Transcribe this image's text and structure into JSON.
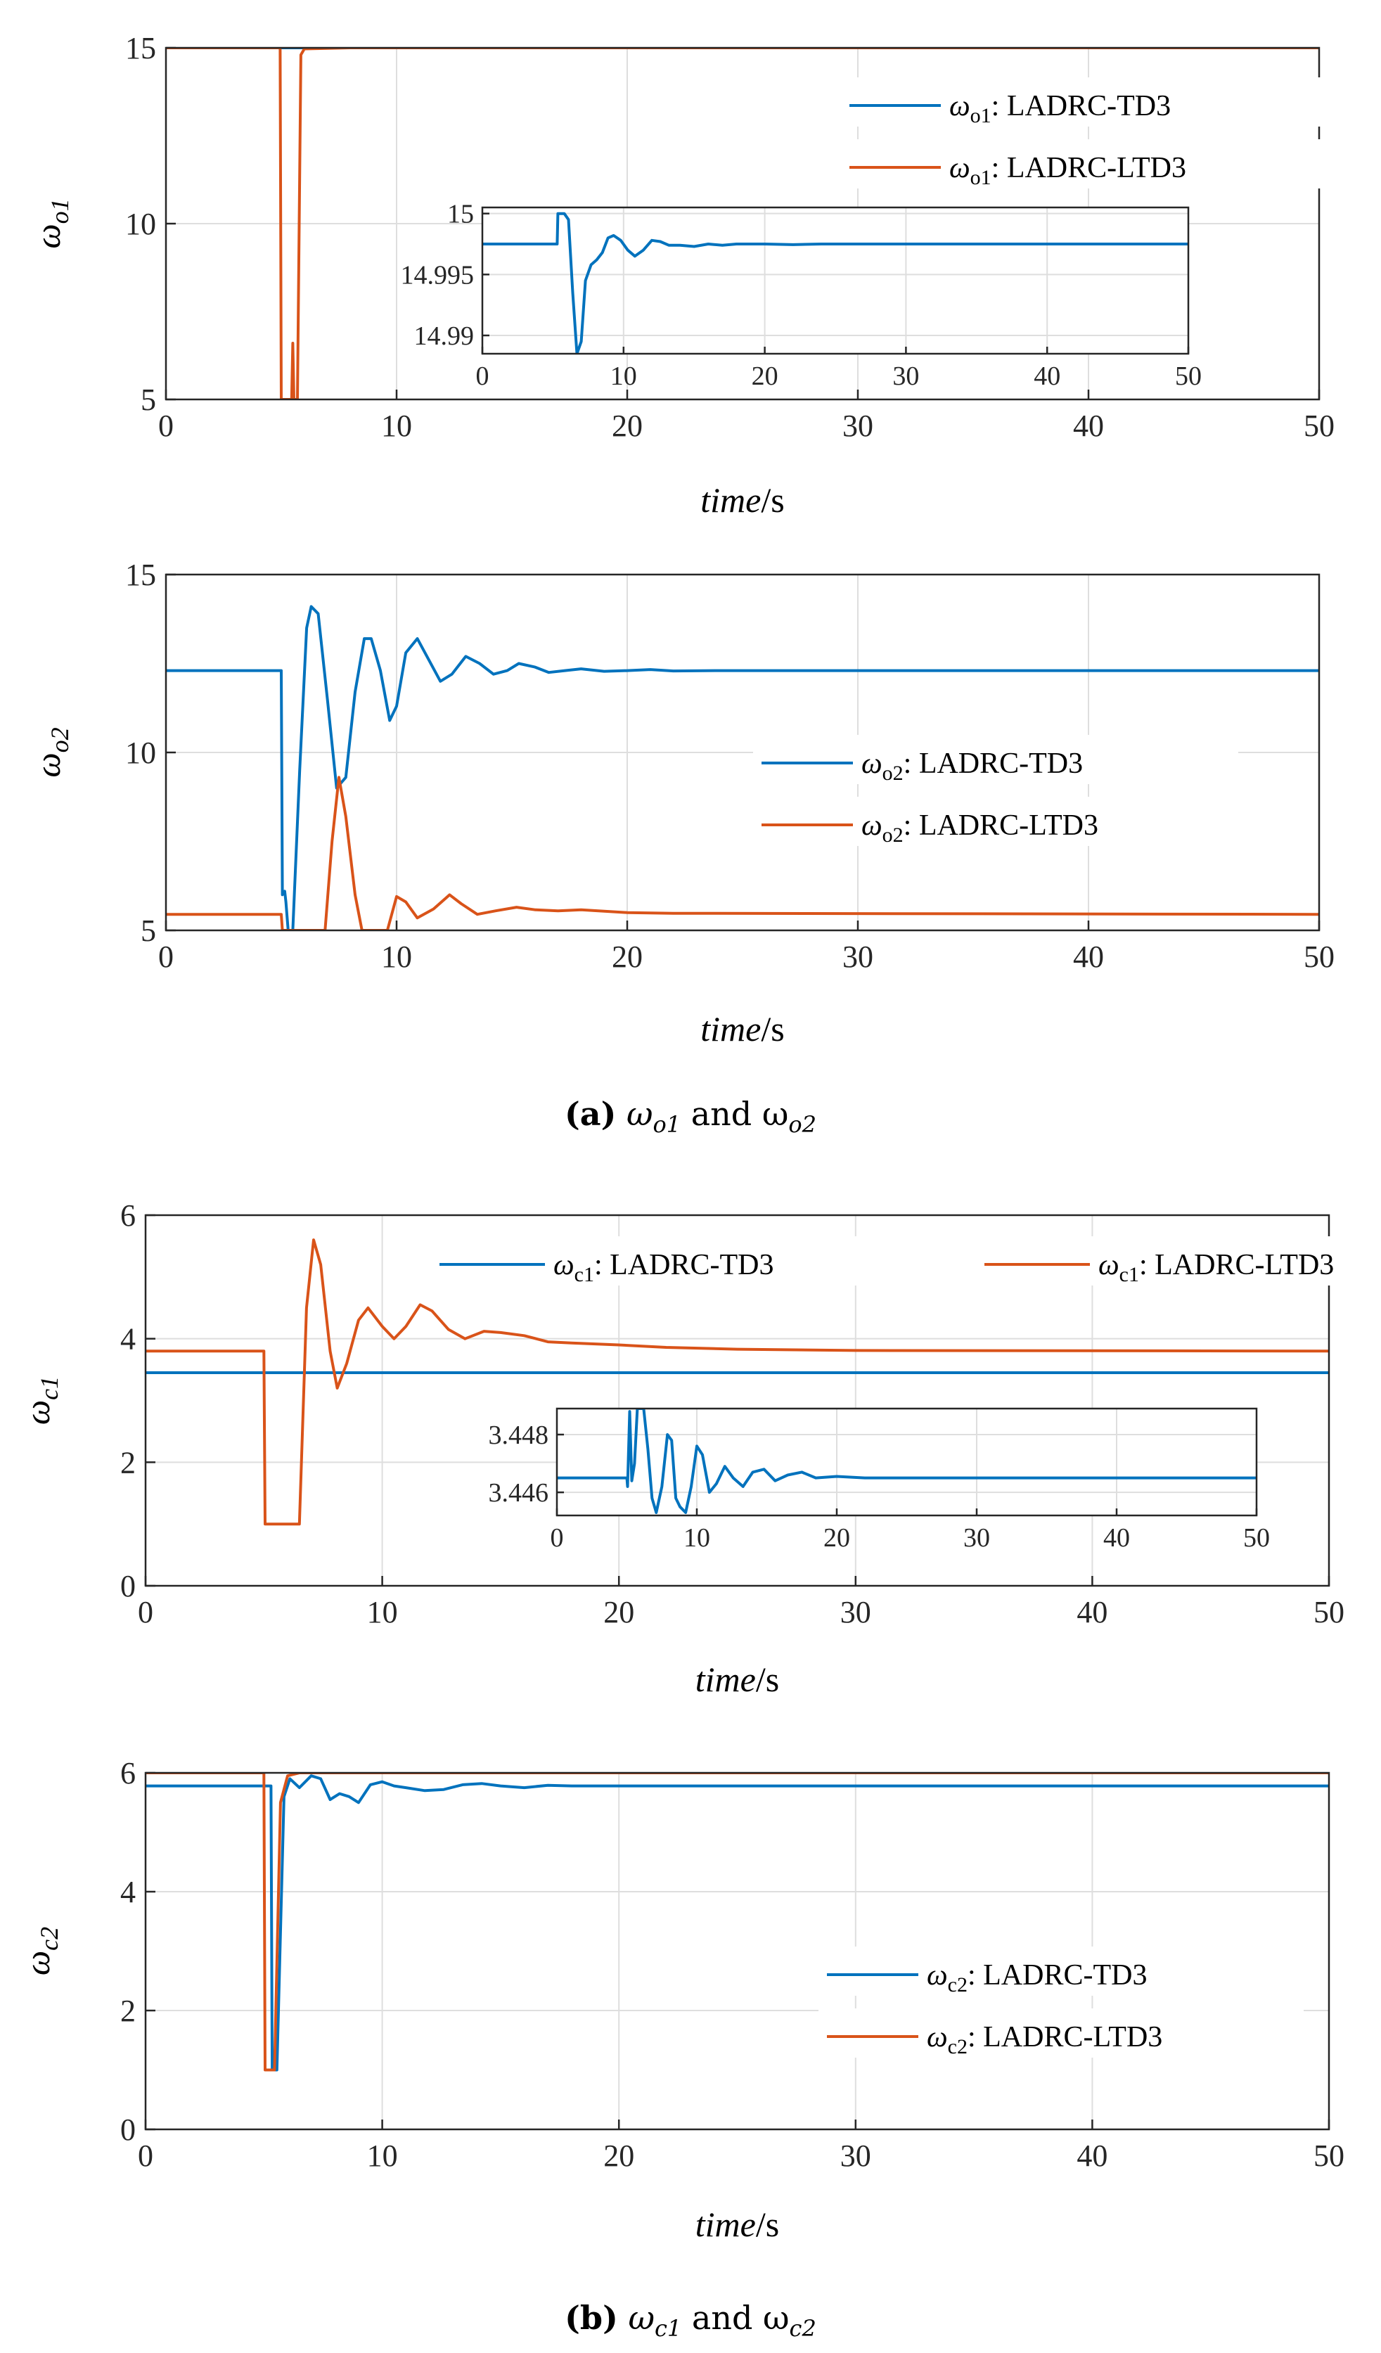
{
  "colors": {
    "ladrc_td3": "#0072BD",
    "ladrc_ltd3": "#D95319"
  },
  "captions": [
    {
      "label": "(a)",
      "text": " ω",
      "sub1": "o1",
      "mid": " and ω",
      "sub2": "o2"
    },
    {
      "label": "(b)",
      "text": " ω",
      "sub1": "c1",
      "mid": " and ω",
      "sub2": "c2"
    }
  ],
  "chart_data": [
    {
      "type": "line",
      "ylabel_base": "ω",
      "ylabel_sub": "o1",
      "xlabel_italic": "time",
      "xlabel_unit": "/s",
      "xlim": [
        0,
        50
      ],
      "ylim": [
        5,
        15
      ],
      "xticks": [
        0,
        10,
        20,
        30,
        40,
        50
      ],
      "yticks": [
        5,
        10,
        15
      ],
      "legend": "top-right",
      "series": [
        {
          "name": "ω",
          "sub": "o1",
          "suffix": ": LADRC-TD3",
          "color_key": "ladrc_td3",
          "points": [
            [
              0,
              15
            ],
            [
              50,
              15
            ]
          ]
        },
        {
          "name": "ω",
          "sub": "o1",
          "suffix": ": LADRC-LTD3",
          "color_key": "ladrc_ltd3",
          "points": [
            [
              0,
              15
            ],
            [
              4.95,
              15
            ],
            [
              5.0,
              5
            ],
            [
              5.45,
              5
            ],
            [
              5.5,
              6.6
            ],
            [
              5.55,
              5
            ],
            [
              5.7,
              5
            ],
            [
              5.85,
              14.8
            ],
            [
              6.0,
              14.97
            ],
            [
              8,
              15
            ],
            [
              50,
              15
            ]
          ]
        }
      ],
      "inset": {
        "xlim": [
          0,
          50
        ],
        "ylim": [
          14.9885,
          15.0005
        ],
        "xticks": [
          0,
          10,
          20,
          30,
          40,
          50
        ],
        "yticks": [
          14.99,
          14.995,
          15
        ],
        "ytick_labels": [
          "14.99",
          "14.995",
          "15"
        ],
        "series_key": "ladrc_td3",
        "points": [
          [
            0,
            14.9975
          ],
          [
            5.3,
            14.9975
          ],
          [
            5.35,
            15.0
          ],
          [
            5.8,
            15.0
          ],
          [
            6.1,
            14.9995
          ],
          [
            6.4,
            14.9935
          ],
          [
            6.7,
            14.9885
          ],
          [
            7.0,
            14.9895
          ],
          [
            7.3,
            14.9945
          ],
          [
            7.7,
            14.9958
          ],
          [
            8.1,
            14.9962
          ],
          [
            8.5,
            14.9968
          ],
          [
            8.9,
            14.998
          ],
          [
            9.3,
            14.9982
          ],
          [
            9.8,
            14.9978
          ],
          [
            10.3,
            14.997
          ],
          [
            10.8,
            14.9965
          ],
          [
            11.4,
            14.997
          ],
          [
            12.0,
            14.9978
          ],
          [
            12.6,
            14.9977
          ],
          [
            13.2,
            14.9974
          ],
          [
            14.0,
            14.9974
          ],
          [
            15.0,
            14.9973
          ],
          [
            16.0,
            14.9975
          ],
          [
            17.0,
            14.9974
          ],
          [
            18.0,
            14.9975
          ],
          [
            20.0,
            14.9975
          ],
          [
            22.0,
            14.99745
          ],
          [
            24.0,
            14.9975
          ],
          [
            50,
            14.9975
          ]
        ]
      }
    },
    {
      "type": "line",
      "ylabel_base": "ω",
      "ylabel_sub": "o2",
      "xlabel_italic": "time",
      "xlabel_unit": "/s",
      "xlim": [
        0,
        50
      ],
      "ylim": [
        5,
        15
      ],
      "xticks": [
        0,
        10,
        20,
        30,
        40,
        50
      ],
      "yticks": [
        5,
        10,
        15
      ],
      "legend": "center-right",
      "series": [
        {
          "name": "ω",
          "sub": "o2",
          "suffix": ": LADRC-TD3",
          "color_key": "ladrc_td3",
          "points": [
            [
              0,
              12.3
            ],
            [
              5.0,
              12.3
            ],
            [
              5.05,
              6.0
            ],
            [
              5.15,
              6.1
            ],
            [
              5.2,
              5.8
            ],
            [
              5.3,
              5.0
            ],
            [
              5.5,
              5.0
            ],
            [
              5.8,
              9.5
            ],
            [
              6.1,
              13.5
            ],
            [
              6.3,
              14.1
            ],
            [
              6.6,
              13.9
            ],
            [
              7.0,
              11.5
            ],
            [
              7.4,
              9.0
            ],
            [
              7.8,
              9.3
            ],
            [
              8.2,
              11.7
            ],
            [
              8.6,
              13.2
            ],
            [
              8.9,
              13.2
            ],
            [
              9.3,
              12.3
            ],
            [
              9.7,
              10.9
            ],
            [
              10.0,
              11.3
            ],
            [
              10.4,
              12.8
            ],
            [
              10.9,
              13.2
            ],
            [
              11.4,
              12.6
            ],
            [
              11.9,
              12.0
            ],
            [
              12.4,
              12.2
            ],
            [
              13.0,
              12.7
            ],
            [
              13.6,
              12.5
            ],
            [
              14.2,
              12.2
            ],
            [
              14.8,
              12.3
            ],
            [
              15.3,
              12.5
            ],
            [
              16.0,
              12.4
            ],
            [
              16.6,
              12.25
            ],
            [
              17.3,
              12.3
            ],
            [
              18.0,
              12.35
            ],
            [
              19.0,
              12.28
            ],
            [
              20.0,
              12.3
            ],
            [
              21.0,
              12.33
            ],
            [
              22.0,
              12.29
            ],
            [
              24.0,
              12.3
            ],
            [
              50,
              12.3
            ]
          ]
        },
        {
          "name": "ω",
          "sub": "o2",
          "suffix": ": LADRC-LTD3",
          "color_key": "ladrc_ltd3",
          "points": [
            [
              0,
              5.45
            ],
            [
              5.0,
              5.45
            ],
            [
              5.05,
              5.0
            ],
            [
              6.9,
              5.0
            ],
            [
              7.2,
              7.5
            ],
            [
              7.5,
              9.3
            ],
            [
              7.8,
              8.2
            ],
            [
              8.2,
              6.0
            ],
            [
              8.5,
              5.0
            ],
            [
              9.6,
              5.0
            ],
            [
              10.0,
              5.95
            ],
            [
              10.4,
              5.8
            ],
            [
              10.9,
              5.35
            ],
            [
              11.6,
              5.6
            ],
            [
              12.3,
              6.0
            ],
            [
              12.8,
              5.75
            ],
            [
              13.5,
              5.45
            ],
            [
              14.3,
              5.55
            ],
            [
              15.2,
              5.65
            ],
            [
              16.0,
              5.58
            ],
            [
              17.0,
              5.55
            ],
            [
              18.0,
              5.58
            ],
            [
              20.0,
              5.5
            ],
            [
              22.0,
              5.48
            ],
            [
              50,
              5.45
            ]
          ]
        }
      ]
    },
    {
      "type": "line",
      "ylabel_base": "ω",
      "ylabel_sub": "c1",
      "xlabel_italic": "time",
      "xlabel_unit": "/s",
      "xlim": [
        0,
        50
      ],
      "ylim": [
        0,
        6
      ],
      "xticks": [
        0,
        10,
        20,
        30,
        40,
        50
      ],
      "yticks": [
        0,
        2,
        4,
        6
      ],
      "legend": "top",
      "series": [
        {
          "name": "ω",
          "sub": "c1",
          "suffix": ": LADRC-TD3",
          "color_key": "ladrc_td3",
          "points": [
            [
              0,
              3.45
            ],
            [
              50,
              3.45
            ]
          ]
        },
        {
          "name": "ω",
          "sub": "c1",
          "suffix": ": LADRC-LTD3",
          "color_key": "ladrc_ltd3",
          "points": [
            [
              0,
              3.8
            ],
            [
              5.0,
              3.8
            ],
            [
              5.05,
              1.0
            ],
            [
              6.5,
              1.0
            ],
            [
              6.8,
              4.5
            ],
            [
              7.1,
              5.6
            ],
            [
              7.4,
              5.2
            ],
            [
              7.8,
              3.8
            ],
            [
              8.1,
              3.2
            ],
            [
              8.5,
              3.6
            ],
            [
              9.0,
              4.3
            ],
            [
              9.4,
              4.5
            ],
            [
              10.0,
              4.2
            ],
            [
              10.5,
              4.0
            ],
            [
              11.0,
              4.2
            ],
            [
              11.6,
              4.55
            ],
            [
              12.1,
              4.45
            ],
            [
              12.8,
              4.15
            ],
            [
              13.5,
              4.0
            ],
            [
              14.3,
              4.12
            ],
            [
              15.0,
              4.1
            ],
            [
              16.0,
              4.05
            ],
            [
              17.0,
              3.95
            ],
            [
              18.0,
              3.93
            ],
            [
              20.0,
              3.9
            ],
            [
              22.0,
              3.86
            ],
            [
              25.0,
              3.83
            ],
            [
              30.0,
              3.81
            ],
            [
              50,
              3.8
            ]
          ]
        }
      ],
      "inset": {
        "xlim": [
          0,
          50
        ],
        "ylim": [
          3.4452,
          3.4489
        ],
        "xticks": [
          0,
          10,
          20,
          30,
          40,
          50
        ],
        "yticks": [
          3.446,
          3.448
        ],
        "ytick_labels": [
          "3.446",
          "3.448"
        ],
        "series_key": "ladrc_td3",
        "points": [
          [
            0,
            3.4465
          ],
          [
            5.0,
            3.4465
          ],
          [
            5.05,
            3.4462
          ],
          [
            5.2,
            3.4488
          ],
          [
            5.35,
            3.4464
          ],
          [
            5.55,
            3.447
          ],
          [
            5.75,
            3.4489
          ],
          [
            6.2,
            3.4489
          ],
          [
            6.5,
            3.4475
          ],
          [
            6.8,
            3.4458
          ],
          [
            7.1,
            3.4453
          ],
          [
            7.5,
            3.4462
          ],
          [
            7.9,
            3.448
          ],
          [
            8.2,
            3.4478
          ],
          [
            8.5,
            3.4458
          ],
          [
            8.8,
            3.4455
          ],
          [
            9.2,
            3.4453
          ],
          [
            9.6,
            3.4462
          ],
          [
            10.0,
            3.4476
          ],
          [
            10.4,
            3.4473
          ],
          [
            10.9,
            3.446
          ],
          [
            11.4,
            3.4463
          ],
          [
            12.0,
            3.4469
          ],
          [
            12.6,
            3.4465
          ],
          [
            13.3,
            3.4462
          ],
          [
            14.0,
            3.4467
          ],
          [
            14.8,
            3.4468
          ],
          [
            15.6,
            3.4464
          ],
          [
            16.5,
            3.4466
          ],
          [
            17.5,
            3.4467
          ],
          [
            18.5,
            3.4465
          ],
          [
            20.0,
            3.44655
          ],
          [
            22.0,
            3.4465
          ],
          [
            50,
            3.4465
          ]
        ]
      }
    },
    {
      "type": "line",
      "ylabel_base": "ω",
      "ylabel_sub": "c2",
      "xlabel_italic": "time",
      "xlabel_unit": "/s",
      "xlim": [
        0,
        50
      ],
      "ylim": [
        0,
        6
      ],
      "xticks": [
        0,
        10,
        20,
        30,
        40,
        50
      ],
      "yticks": [
        0,
        2,
        4,
        6
      ],
      "legend": "center-right",
      "series": [
        {
          "name": "ω",
          "sub": "c2",
          "suffix": ": LADRC-TD3",
          "color_key": "ladrc_td3",
          "points": [
            [
              0,
              5.78
            ],
            [
              5.3,
              5.78
            ],
            [
              5.35,
              1.0
            ],
            [
              5.55,
              1.0
            ],
            [
              5.85,
              5.6
            ],
            [
              6.1,
              5.9
            ],
            [
              6.5,
              5.75
            ],
            [
              7.0,
              5.95
            ],
            [
              7.4,
              5.9
            ],
            [
              7.8,
              5.55
            ],
            [
              8.2,
              5.65
            ],
            [
              8.6,
              5.6
            ],
            [
              9.0,
              5.5
            ],
            [
              9.5,
              5.8
            ],
            [
              10.0,
              5.85
            ],
            [
              10.5,
              5.78
            ],
            [
              11.0,
              5.75
            ],
            [
              11.8,
              5.7
            ],
            [
              12.6,
              5.72
            ],
            [
              13.4,
              5.8
            ],
            [
              14.2,
              5.82
            ],
            [
              15.0,
              5.78
            ],
            [
              16.0,
              5.75
            ],
            [
              17.0,
              5.79
            ],
            [
              18.0,
              5.78
            ],
            [
              20.0,
              5.78
            ],
            [
              50,
              5.78
            ]
          ]
        },
        {
          "name": "ω",
          "sub": "c2",
          "suffix": ": LADRC-LTD3",
          "color_key": "ladrc_ltd3",
          "points": [
            [
              0,
              6.0
            ],
            [
              5.0,
              6.0
            ],
            [
              5.05,
              1.0
            ],
            [
              5.45,
              1.0
            ],
            [
              5.7,
              5.5
            ],
            [
              6.0,
              5.95
            ],
            [
              6.5,
              6.0
            ],
            [
              50,
              6.0
            ]
          ]
        }
      ]
    }
  ]
}
